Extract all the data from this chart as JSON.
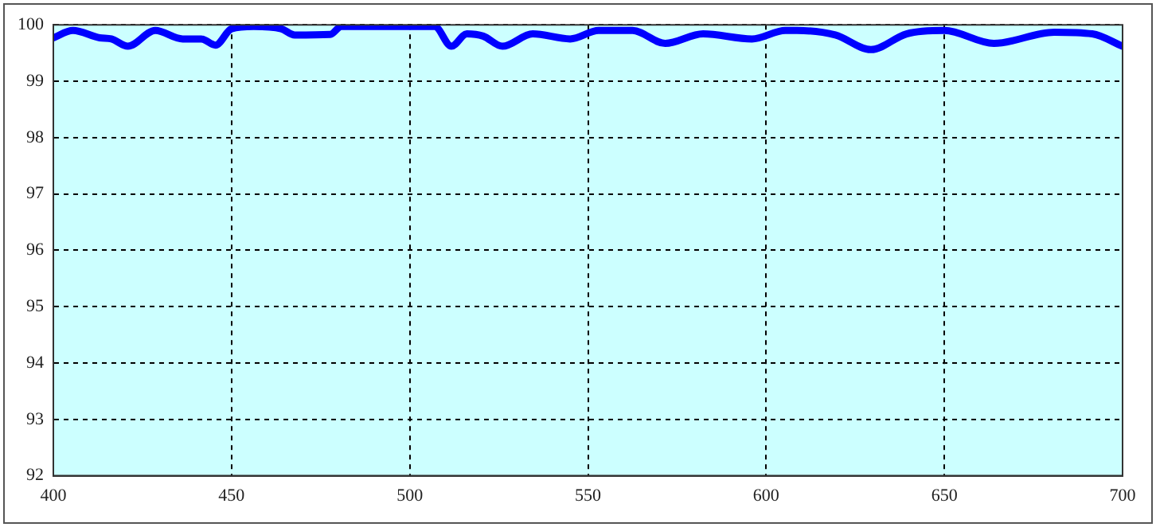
{
  "chart_data": {
    "type": "line",
    "x": [
      400,
      405.5,
      413,
      416.3,
      420.9,
      428.6,
      436.3,
      441.5,
      445.5,
      450,
      456.2,
      463.9,
      467.7,
      477.7,
      480.8,
      499,
      507,
      511.7,
      516,
      520.6,
      526,
      534.5,
      545,
      553,
      562.5,
      571.7,
      582.3,
      596,
      605.4,
      608.6,
      619.4,
      629.4,
      639.4,
      650,
      663.9,
      680.8,
      691.5,
      700
    ],
    "series": [
      {
        "color": "#0000ff",
        "values": [
          99.77,
          99.9,
          99.77,
          99.75,
          99.62,
          99.9,
          99.75,
          99.75,
          99.64,
          99.93,
          99.97,
          99.93,
          99.82,
          99.83,
          99.97,
          99.97,
          99.97,
          99.62,
          99.84,
          99.8,
          99.62,
          99.84,
          99.75,
          99.9,
          99.9,
          99.67,
          99.84,
          99.75,
          99.9,
          99.9,
          99.82,
          99.56,
          99.84,
          99.9,
          99.67,
          99.87,
          99.84,
          99.62
        ]
      }
    ],
    "xlim": [
      400,
      700
    ],
    "xticks": [
      400,
      450,
      500,
      550,
      600,
      650,
      700
    ],
    "ylim": [
      92,
      100
    ],
    "yticks": [
      92,
      93,
      94,
      95,
      96,
      97,
      98,
      99,
      100
    ],
    "grid": true,
    "legend": false,
    "marker": "none",
    "line_style": "solid"
  }
}
